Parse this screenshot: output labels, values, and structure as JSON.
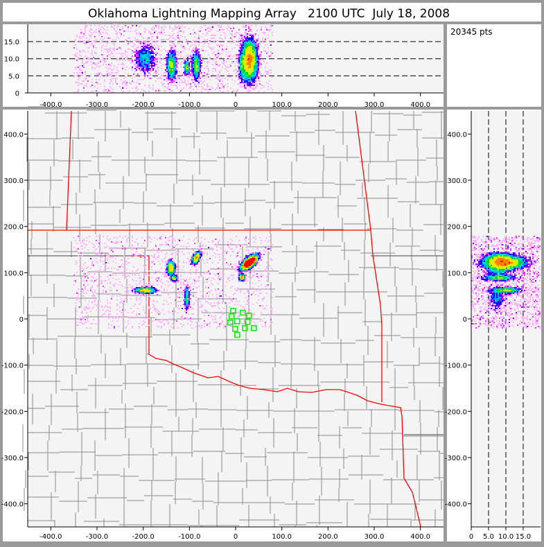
{
  "title": "Oklahoma Lightning Mapping Array   2100 UTC  July 18, 2008",
  "info": {
    "points_label": "20345 pts"
  },
  "map": {
    "border_color": "#ff0000",
    "county_color": "#8a8a8a",
    "sensor_color": "#00ee00",
    "background": "#f4f4f4"
  },
  "chart_data": {
    "type": "scatter",
    "total_points": 20345,
    "plan_view": {
      "xlim": [
        -450,
        450
      ],
      "ylim": [
        -450,
        450
      ],
      "xticks": [
        -400,
        -300,
        -200,
        -100,
        0,
        100,
        200,
        300,
        400
      ],
      "xtick_labels": [
        "-400.0",
        "-300.0",
        "-200.0",
        "-100.0",
        "0",
        "100.0",
        "200.0",
        "300.0",
        "400.0"
      ],
      "yticks": [
        400,
        300,
        200,
        100,
        0,
        -100,
        -200,
        -300,
        -400
      ],
      "ytick_labels": [
        "400.0",
        "300.0",
        "200.0",
        "100.0",
        "0",
        "-100.0",
        "-200.0",
        "-300.0",
        "-400.0"
      ]
    },
    "altitude_vs_x": {
      "xlim": [
        -450,
        450
      ],
      "ylim": [
        0,
        20
      ],
      "yticks": [
        0,
        5,
        10,
        15
      ],
      "ytick_labels": [
        "0",
        "5.0",
        "10.0",
        "15.0"
      ],
      "dashed_gridlines": [
        5,
        10,
        15
      ]
    },
    "altitude_vs_y": {
      "xlim": [
        0,
        20
      ],
      "ylim": [
        -450,
        450
      ],
      "xticks": [
        0,
        5,
        10,
        15
      ],
      "xtick_labels": [
        "0",
        "5.0",
        "10.0",
        "15.0"
      ],
      "dashed_gridlines": [
        5,
        10,
        15
      ]
    },
    "clusters": [
      {
        "x": 30,
        "y": 122,
        "sx": 9,
        "sy": 4,
        "rotation_deg": 40,
        "alt": 9.5,
        "alt_sd": 2.6,
        "share": 0.6
      },
      {
        "x": 14,
        "y": 90,
        "sx": 3,
        "sy": 3,
        "rotation_deg": 0,
        "alt": 8,
        "alt_sd": 2.2,
        "share": 0.04
      },
      {
        "x": -85,
        "y": 132,
        "sx": 3,
        "sy": 6,
        "rotation_deg": -30,
        "alt": 8,
        "alt_sd": 1.8,
        "share": 0.08
      },
      {
        "x": -140,
        "y": 110,
        "sx": 4,
        "sy": 7,
        "rotation_deg": 0,
        "alt": 8,
        "alt_sd": 1.8,
        "share": 0.08
      },
      {
        "x": -133,
        "y": 88,
        "sx": 3,
        "sy": 3,
        "rotation_deg": 0,
        "alt": 8,
        "alt_sd": 2.0,
        "share": 0.02
      },
      {
        "x": -195,
        "y": 62,
        "sx": 10,
        "sy": 3,
        "rotation_deg": 0,
        "alt": 10,
        "alt_sd": 1.8,
        "share": 0.07
      },
      {
        "x": -105,
        "y": 45,
        "sx": 2.5,
        "sy": 12,
        "rotation_deg": 0,
        "alt": 7.5,
        "alt_sd": 1.0,
        "share": 0.03
      }
    ],
    "background_scatter": {
      "xlim": [
        -350,
        80
      ],
      "ylim": [
        -20,
        180
      ],
      "alt": [
        0,
        20
      ],
      "share": 0.08
    },
    "sensors": [
      [
        -5.5,
        17.5
      ],
      [
        15.5,
        13.5
      ],
      [
        29,
        7
      ],
      [
        -8.5,
        5.5
      ],
      [
        3.5,
        -5
      ],
      [
        -11.5,
        -8
      ],
      [
        26,
        -6.5
      ],
      [
        -1,
        -21.5
      ],
      [
        20,
        -20
      ],
      [
        39.5,
        -20
      ],
      [
        3.5,
        -34.5
      ]
    ],
    "density_colors": [
      "#ffb4ff",
      "#e040ff",
      "#7000ff",
      "#0000ff",
      "#00a0ff",
      "#00e0c0",
      "#00d040",
      "#b0ff00",
      "#ffe000",
      "#ff8000",
      "#ff0000"
    ]
  }
}
